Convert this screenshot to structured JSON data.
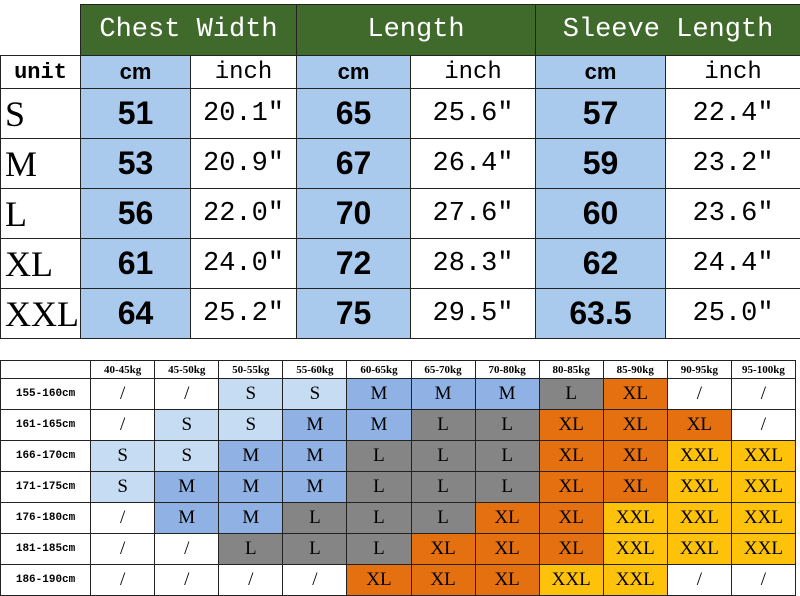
{
  "size_table": {
    "groups": [
      "Chest Width",
      "Length",
      "Sleeve Length"
    ],
    "unit": "unit",
    "subheaders": [
      "cm",
      "inch",
      "cm",
      "inch",
      "cm",
      "inch"
    ],
    "rows": [
      [
        "S",
        "51",
        "20.1\"",
        "65",
        "25.6\"",
        "57",
        "22.4\""
      ],
      [
        "M",
        "53",
        "20.9\"",
        "67",
        "26.4\"",
        "59",
        "23.2\""
      ],
      [
        "L",
        "56",
        "22.0\"",
        "70",
        "27.6\"",
        "60",
        "23.6\""
      ],
      [
        "XL",
        "61",
        "24.0\"",
        "72",
        "28.3\"",
        "62",
        "24.4\""
      ],
      [
        "XXL",
        "64",
        "25.2\"",
        "75",
        "29.5\"",
        "63.5",
        "25.0\""
      ]
    ]
  },
  "fit_table": {
    "weights": [
      "40-45kg",
      "45-50kg",
      "50-55kg",
      "55-60kg",
      "60-65kg",
      "65-70kg",
      "70-80kg",
      "80-85kg",
      "85-90kg",
      "90-95kg",
      "95-100kg"
    ],
    "rows": [
      {
        "height": "155-160cm",
        "cells": [
          "/",
          "/",
          "S",
          "S",
          "M",
          "M",
          "M",
          "L",
          "XL",
          "/",
          "/"
        ]
      },
      {
        "height": "161-165cm",
        "cells": [
          "/",
          "S",
          "S",
          "M",
          "M",
          "L",
          "L",
          "XL",
          "XL",
          "XL",
          "/"
        ]
      },
      {
        "height": "166-170cm",
        "cells": [
          "S",
          "S",
          "M",
          "M",
          "L",
          "L",
          "L",
          "XL",
          "XL",
          "XXL",
          "XXL"
        ]
      },
      {
        "height": "171-175cm",
        "cells": [
          "S",
          "M",
          "M",
          "M",
          "L",
          "L",
          "L",
          "XL",
          "XL",
          "XXL",
          "XXL"
        ]
      },
      {
        "height": "176-180cm",
        "cells": [
          "/",
          "M",
          "M",
          "L",
          "L",
          "L",
          "XL",
          "XL",
          "XXL",
          "XXL",
          "XXL"
        ]
      },
      {
        "height": "181-185cm",
        "cells": [
          "/",
          "/",
          "L",
          "L",
          "L",
          "XL",
          "XL",
          "XL",
          "XXL",
          "XXL",
          "XXL"
        ]
      },
      {
        "height": "186-190cm",
        "cells": [
          "/",
          "/",
          "/",
          "/",
          "XL",
          "XL",
          "XL",
          "XXL",
          "XXL",
          "/",
          "/"
        ]
      }
    ],
    "size_colors": {
      "S": "#c5dcf2",
      "M": "#8fb1e3",
      "L": "#858585",
      "XL": "#e4700f",
      "XXL": "#ffc20a"
    }
  }
}
